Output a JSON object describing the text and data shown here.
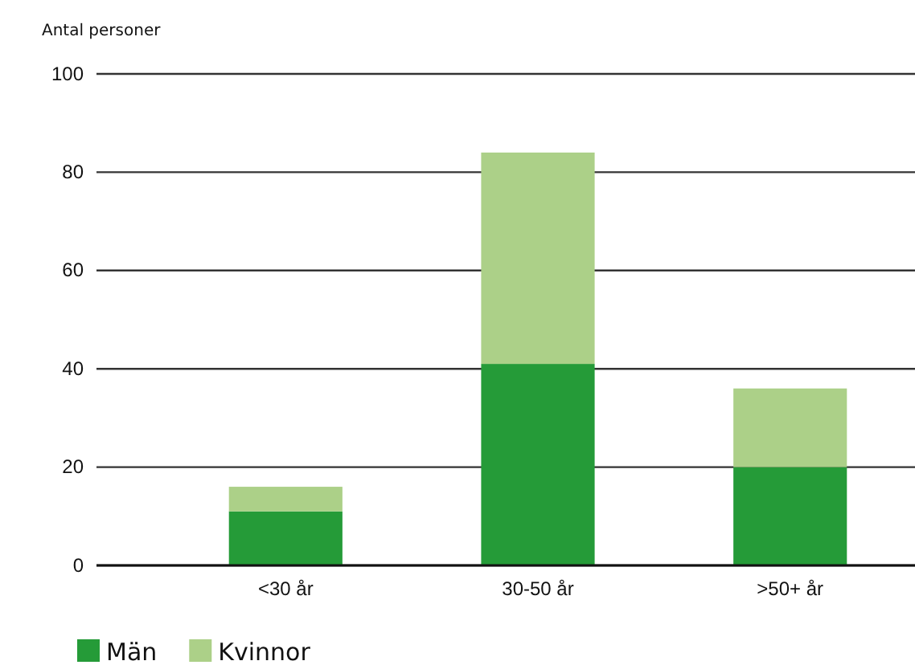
{
  "chart_data": {
    "type": "bar",
    "ylabel": "Antal personer",
    "categories": [
      "<30 år",
      "30-50 år",
      ">50+ år"
    ],
    "stacked": true,
    "series": [
      {
        "name": "Män",
        "color": "#259b38",
        "values": [
          11,
          41,
          20
        ]
      },
      {
        "name": "Kvinnor",
        "color": "#acd088",
        "values": [
          5,
          43,
          16
        ]
      }
    ],
    "ylim": [
      0,
      100
    ],
    "yticks": [
      0,
      20,
      40,
      60,
      80,
      100
    ],
    "grid": "y",
    "legend": "bottom"
  }
}
